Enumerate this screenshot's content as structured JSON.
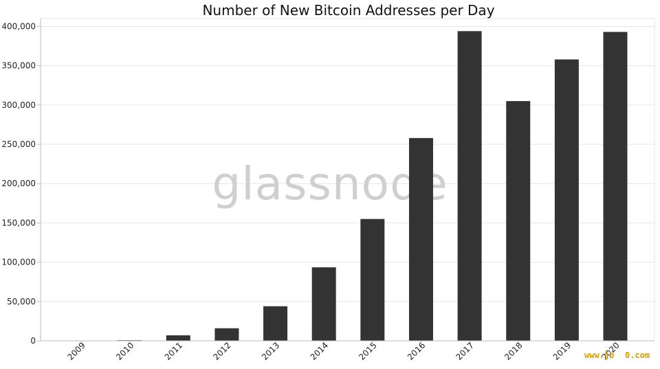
{
  "chart_data": {
    "type": "bar",
    "title": "Number of New Bitcoin Addresses per Day",
    "xlabel": "",
    "ylabel": "",
    "categories": [
      "2009",
      "2010",
      "2011",
      "2012",
      "2013",
      "2014",
      "2015",
      "2016",
      "2017",
      "2018",
      "2019",
      "2020"
    ],
    "values": [
      100,
      800,
      7000,
      16000,
      44000,
      93500,
      155000,
      258000,
      394000,
      305000,
      358000,
      393000
    ],
    "ylim": [
      0,
      410000
    ],
    "yticks": [
      0,
      50000,
      100000,
      150000,
      200000,
      250000,
      300000,
      350000,
      400000
    ],
    "ytick_labels": [
      "0",
      "50,000",
      "100,000",
      "150,000",
      "200,000",
      "250,000",
      "300,000",
      "350,000",
      "400,000"
    ],
    "grid": true,
    "colors": {
      "bar": "#333333",
      "grid": "#e6e6e6",
      "axis": "#bbbbbb"
    }
  },
  "watermark": "glassnode",
  "site_watermark": "www.jb",
  "site_watermark_tail": "0.com"
}
